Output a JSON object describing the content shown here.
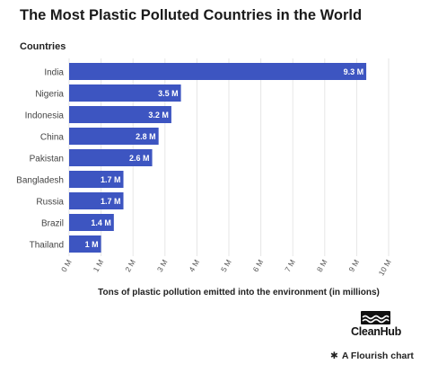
{
  "title": "The Most Plastic Polluted Countries in the World",
  "chart_data": {
    "type": "bar",
    "orientation": "horizontal",
    "ylabel": "Countries",
    "xlabel": "Tons of plastic pollution emitted into the environment (in millions)",
    "categories": [
      "India",
      "Nigeria",
      "Indonesia",
      "China",
      "Pakistan",
      "Bangladesh",
      "Russia",
      "Brazil",
      "Thailand"
    ],
    "values": [
      9.3,
      3.5,
      3.2,
      2.8,
      2.6,
      1.7,
      1.7,
      1.4,
      1
    ],
    "value_labels": [
      "9.3 M",
      "3.5 M",
      "3.2 M",
      "2.8 M",
      "2.6 M",
      "1.7 M",
      "1.7 M",
      "1.4 M",
      "1 M"
    ],
    "xlim": [
      0,
      10
    ],
    "xticks": [
      "0 M",
      "1 M",
      "2 M",
      "3 M",
      "4 M",
      "5 M",
      "6 M",
      "7 M",
      "8 M",
      "9 M",
      "10 M"
    ],
    "grid": true,
    "bar_color": "#3d55c1"
  },
  "brand": {
    "name": "CleanHub",
    "icon": "cleanhub-waves-logo"
  },
  "credit": {
    "star": "✱",
    "text": "A Flourish chart"
  }
}
